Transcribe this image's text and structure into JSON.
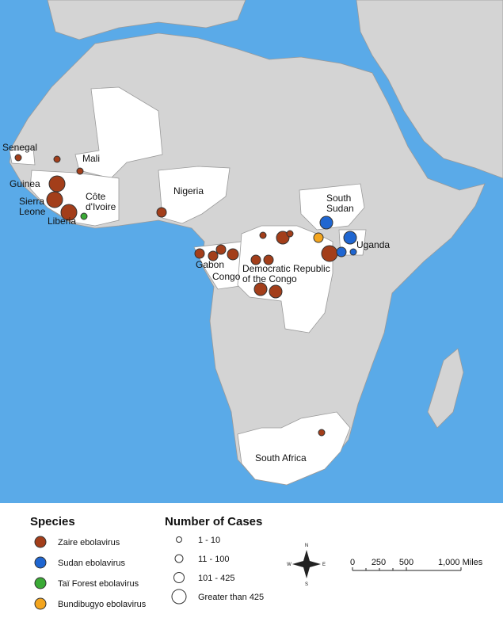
{
  "map": {
    "country_labels": [
      [
        "Senegal"
      ],
      [
        "Mali"
      ],
      [
        "Guinea"
      ],
      [
        "Sierra",
        "Leone"
      ],
      [
        "Liberia"
      ],
      [
        "Côte",
        "d'Ivoire"
      ],
      [
        "Nigeria"
      ],
      [
        "South",
        "Sudan"
      ],
      [
        "Uganda"
      ],
      [
        "Gabon"
      ],
      [
        "Congo"
      ],
      [
        "Democratic Republic",
        "of the Congo"
      ],
      [
        "South Africa"
      ]
    ]
  },
  "legend": {
    "species": {
      "title": "Species",
      "items": [
        "Zaire ebolavirus",
        "Sudan ebolavirus",
        "Taï Forest ebolavirus",
        "Bundibugyo ebolavirus"
      ]
    },
    "cases": {
      "title": "Number of Cases",
      "items": [
        "1 - 10",
        "11 - 100",
        "101 - 425",
        "Greater than 425"
      ]
    }
  },
  "compass": [
    "N",
    "E",
    "S",
    "W"
  ],
  "scale_bar": [
    "0",
    "250",
    "500",
    "1,000 Miles"
  ]
}
